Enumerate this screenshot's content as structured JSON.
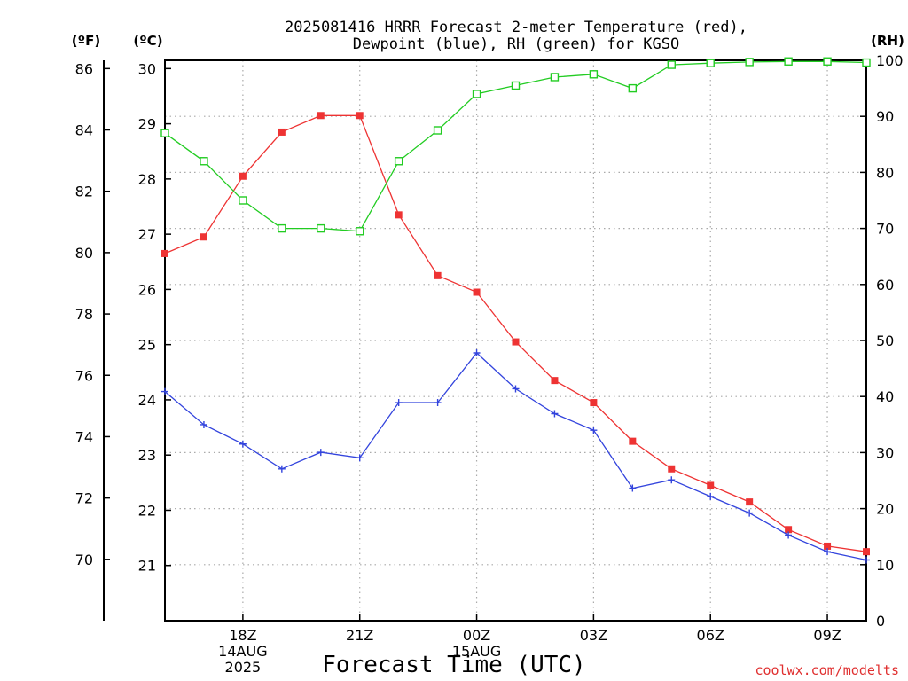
{
  "credit": "coolwx.com/modelts",
  "colors": {
    "temperature": "#ee3333",
    "dewpoint": "#3344dd",
    "rh": "#22cc22",
    "credit": "#e03030",
    "grid": "#aaaaaa"
  },
  "chart_data": {
    "type": "line",
    "title": [
      "2025081416 HRRR Forecast 2-meter Temperature (red),",
      "Dewpoint (blue), RH (green) for KGSO"
    ],
    "xlabel": "Forecast Time (UTC)",
    "x_unit": "hours from 2025-08-14 16Z",
    "xlim": [
      16,
      34
    ],
    "x_ticks": [
      {
        "x": 18,
        "lines": [
          "18Z",
          "14AUG",
          "2025"
        ]
      },
      {
        "x": 21,
        "lines": [
          "21Z"
        ]
      },
      {
        "x": 24,
        "lines": [
          "00Z",
          "15AUG"
        ]
      },
      {
        "x": 27,
        "lines": [
          "03Z"
        ]
      },
      {
        "x": 30,
        "lines": [
          "06Z"
        ]
      },
      {
        "x": 33,
        "lines": [
          "09Z"
        ]
      }
    ],
    "left_axis_f": {
      "label": "(ºF)",
      "ticks": [
        "70",
        "72",
        "74",
        "76",
        "78",
        "80",
        "82",
        "84",
        "86"
      ]
    },
    "left_axis_c": {
      "label": "(ºC)",
      "ticks": [
        "21",
        "22",
        "23",
        "24",
        "25",
        "26",
        "27",
        "28",
        "29",
        "30"
      ],
      "ylim": [
        20,
        30.15
      ]
    },
    "right_axis": {
      "label": "(RH)",
      "ticks": [
        "0",
        "10",
        "20",
        "30",
        "40",
        "50",
        "60",
        "70",
        "80",
        "90",
        "100"
      ],
      "ylim": [
        0,
        100
      ]
    },
    "grid": true,
    "series": [
      {
        "name": "Temperature",
        "axis": "C",
        "marker": "filled-square",
        "x": [
          16,
          17,
          18,
          19,
          20,
          21,
          22,
          23,
          24,
          25,
          26,
          27,
          28,
          29,
          30,
          31,
          32,
          33,
          34
        ],
        "values": [
          26.65,
          26.95,
          28.05,
          28.85,
          29.15,
          29.15,
          27.35,
          26.25,
          25.95,
          25.05,
          24.35,
          23.95,
          23.25,
          22.75,
          22.45,
          22.15,
          21.65,
          21.35,
          21.25
        ]
      },
      {
        "name": "Dewpoint",
        "axis": "C",
        "marker": "plus",
        "x": [
          16,
          17,
          18,
          19,
          20,
          21,
          22,
          23,
          24,
          25,
          26,
          27,
          28,
          29,
          30,
          31,
          32,
          33,
          34
        ],
        "values": [
          24.15,
          23.55,
          23.2,
          22.75,
          23.05,
          22.95,
          23.95,
          23.95,
          24.85,
          24.2,
          23.75,
          23.45,
          22.4,
          22.55,
          22.25,
          21.95,
          21.55,
          21.25,
          21.1
        ]
      },
      {
        "name": "RH",
        "axis": "RH",
        "marker": "open-square",
        "x": [
          16,
          17,
          18,
          19,
          20,
          21,
          22,
          23,
          24,
          25,
          26,
          27,
          28,
          29,
          30,
          31,
          32,
          33,
          34
        ],
        "values": [
          87,
          82,
          75,
          70,
          70,
          69.5,
          82,
          87.5,
          94,
          95.5,
          97,
          97.5,
          95,
          99.2,
          99.5,
          99.7,
          99.8,
          99.8,
          99.6
        ]
      }
    ]
  }
}
